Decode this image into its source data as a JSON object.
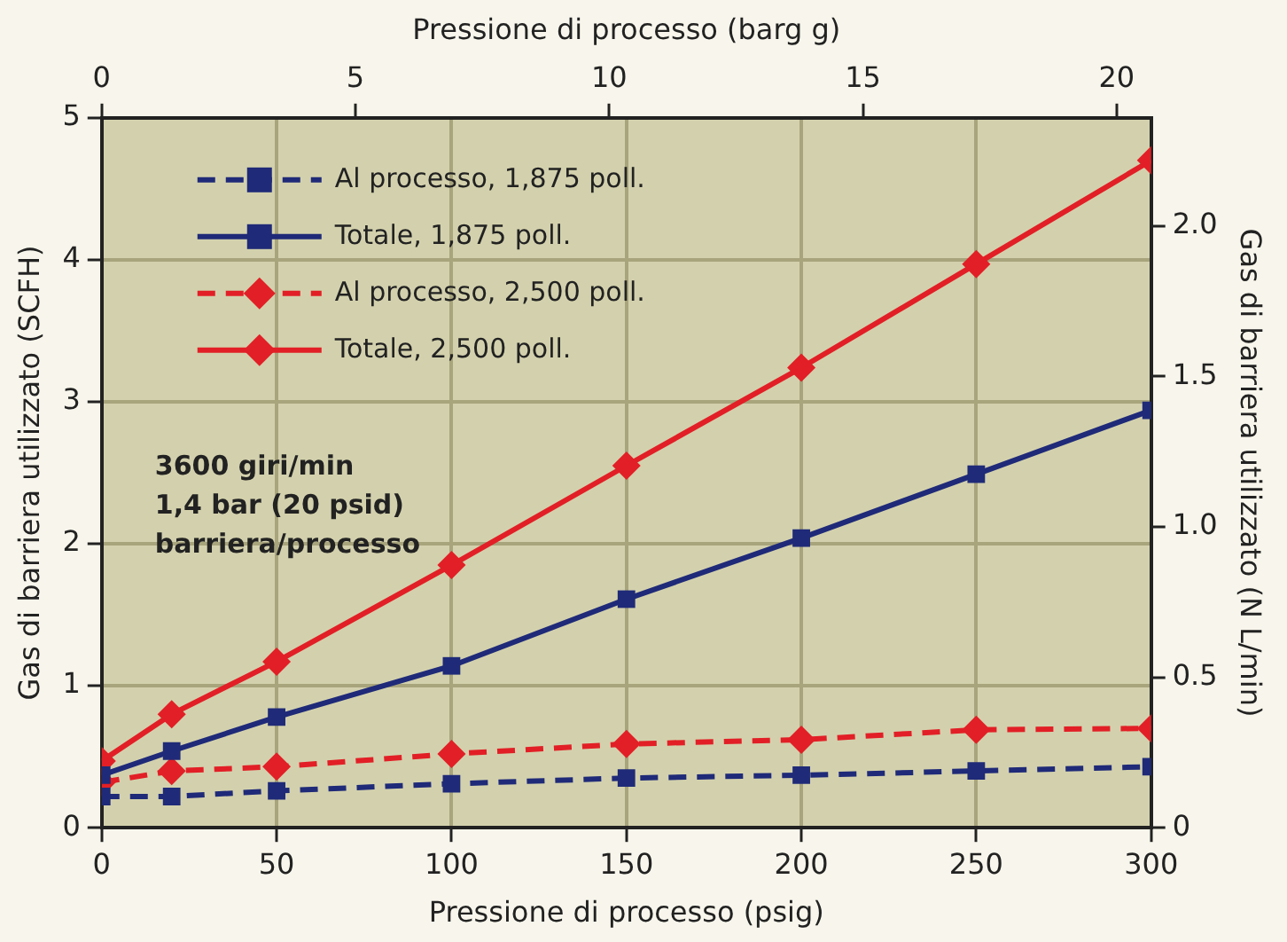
{
  "chart_data": {
    "type": "line",
    "xlabel": "Pressione di processo (psig)",
    "x2label": "Pressione di processo (barg g)",
    "ylabel": "Gas di barriera utilizzato (SCFH)",
    "y2label": "Gas di barriera utilizzato (N L/min)",
    "x": [
      0,
      20,
      50,
      100,
      150,
      200,
      250,
      300
    ],
    "xlim": [
      0,
      300
    ],
    "xticks": [
      0,
      50,
      100,
      150,
      200,
      250,
      300
    ],
    "x2lim": [
      0,
      20.68
    ],
    "x2ticks": [
      0,
      5,
      10,
      15,
      20
    ],
    "ylim": [
      0,
      5
    ],
    "yticks": [
      0,
      1,
      2,
      3,
      4,
      5
    ],
    "y2lim": [
      0,
      2.36
    ],
    "y2ticks": [
      0,
      0.5,
      {
        "value": 1,
        "label": "1.0"
      },
      1.5,
      {
        "value": 2,
        "label": "2.0"
      }
    ],
    "grid": true,
    "legend": "top left",
    "series": [
      {
        "name": "Al processo, 1,875 poll.",
        "color": "#1f2a78",
        "marker": "square",
        "line_style": "dashed",
        "values": [
          0.22,
          0.22,
          0.26,
          0.31,
          0.35,
          0.37,
          0.4,
          0.43
        ]
      },
      {
        "name": "Totale, 1,875 poll.",
        "color": "#1f2a78",
        "marker": "square",
        "line_style": "solid",
        "values": [
          0.37,
          0.54,
          0.78,
          1.14,
          1.61,
          2.04,
          2.49,
          2.94
        ]
      },
      {
        "name": "Al processo, 2,500 poll.",
        "color": "#e21f26",
        "marker": "diamond",
        "line_style": "dashed",
        "values": [
          0.32,
          0.4,
          0.43,
          0.52,
          0.59,
          0.62,
          0.69,
          0.7
        ]
      },
      {
        "name": "Totale, 2,500 poll.",
        "color": "#e21f26",
        "marker": "diamond",
        "line_style": "solid",
        "values": [
          0.47,
          0.8,
          1.17,
          1.85,
          2.55,
          3.24,
          3.97,
          4.7
        ]
      }
    ],
    "annotations": [
      "3600 giri/min",
      "1,4 bar (20 psid)",
      "barriera/processo"
    ]
  }
}
